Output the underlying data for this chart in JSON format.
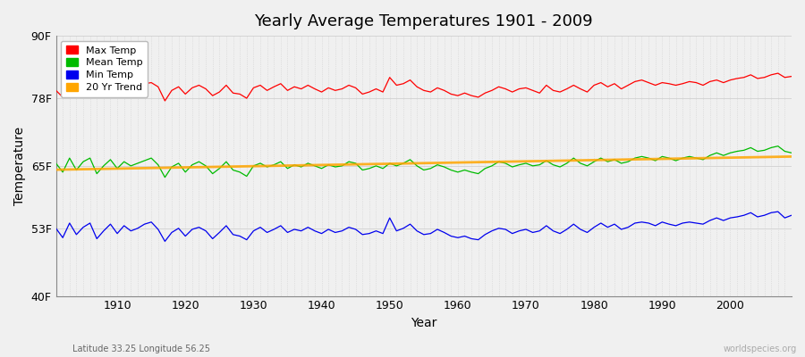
{
  "title": "Yearly Average Temperatures 1901 - 2009",
  "xlabel": "Year",
  "ylabel": "Temperature",
  "background_color": "#f0f0f0",
  "plot_bg_color": "#f0f0f0",
  "ylim": [
    40,
    90
  ],
  "yticks": [
    40,
    53,
    65,
    78,
    90
  ],
  "ytick_labels": [
    "40F",
    "53F",
    "65F",
    "78F",
    "90F"
  ],
  "xlim": [
    1901,
    2009
  ],
  "xticks": [
    1910,
    1920,
    1930,
    1940,
    1950,
    1960,
    1970,
    1980,
    1990,
    2000
  ],
  "legend_entries": [
    "Max Temp",
    "Mean Temp",
    "Min Temp",
    "20 Yr Trend"
  ],
  "legend_colors": [
    "#ff0000",
    "#00bb00",
    "#0000ee",
    "#ffa500"
  ],
  "lat_lon_label": "Latitude 33.25 Longitude 56.25",
  "watermark": "worldspecies.org",
  "max_temp_color": "#ff0000",
  "mean_temp_color": "#00bb00",
  "min_temp_color": "#0000ee",
  "trend_color": "#ffa500",
  "grid_color": "#d0d0d0",
  "years": [
    1901,
    1902,
    1903,
    1904,
    1905,
    1906,
    1907,
    1908,
    1909,
    1910,
    1911,
    1912,
    1913,
    1914,
    1915,
    1916,
    1917,
    1918,
    1919,
    1920,
    1921,
    1922,
    1923,
    1924,
    1925,
    1926,
    1927,
    1928,
    1929,
    1930,
    1931,
    1932,
    1933,
    1934,
    1935,
    1936,
    1937,
    1938,
    1939,
    1940,
    1941,
    1942,
    1943,
    1944,
    1945,
    1946,
    1947,
    1948,
    1949,
    1950,
    1951,
    1952,
    1953,
    1954,
    1955,
    1956,
    1957,
    1958,
    1959,
    1960,
    1961,
    1962,
    1963,
    1964,
    1965,
    1966,
    1967,
    1968,
    1969,
    1970,
    1971,
    1972,
    1973,
    1974,
    1975,
    1976,
    1977,
    1978,
    1979,
    1980,
    1981,
    1982,
    1983,
    1984,
    1985,
    1986,
    1987,
    1988,
    1989,
    1990,
    1991,
    1992,
    1993,
    1994,
    1995,
    1996,
    1997,
    1998,
    1999,
    2000,
    2001,
    2002,
    2003,
    2004,
    2005,
    2006,
    2007,
    2008,
    2009
  ],
  "max_temp": [
    79.5,
    78.2,
    80.5,
    79.0,
    80.2,
    80.8,
    78.5,
    79.8,
    80.5,
    79.2,
    80.0,
    79.5,
    80.2,
    80.8,
    81.0,
    80.2,
    77.5,
    79.5,
    80.2,
    78.8,
    80.0,
    80.5,
    79.8,
    78.5,
    79.2,
    80.5,
    79.0,
    78.8,
    78.0,
    80.0,
    80.5,
    79.5,
    80.2,
    80.8,
    79.5,
    80.2,
    79.8,
    80.5,
    79.8,
    79.2,
    80.0,
    79.5,
    79.8,
    80.5,
    80.0,
    78.8,
    79.2,
    79.8,
    79.2,
    82.0,
    80.5,
    80.8,
    81.5,
    80.2,
    79.5,
    79.2,
    80.0,
    79.5,
    78.8,
    78.5,
    79.0,
    78.5,
    78.2,
    79.0,
    79.5,
    80.2,
    79.8,
    79.2,
    79.8,
    80.0,
    79.5,
    79.0,
    80.5,
    79.5,
    79.2,
    79.8,
    80.5,
    79.8,
    79.2,
    80.5,
    81.0,
    80.2,
    80.8,
    79.8,
    80.5,
    81.2,
    81.5,
    81.0,
    80.5,
    81.0,
    80.8,
    80.5,
    80.8,
    81.2,
    81.0,
    80.5,
    81.2,
    81.5,
    81.0,
    81.5,
    81.8,
    82.0,
    82.5,
    81.8,
    82.0,
    82.5,
    82.8,
    82.0,
    82.2
  ],
  "mean_temp": [
    65.5,
    63.8,
    66.5,
    64.2,
    65.8,
    66.5,
    63.5,
    65.0,
    66.2,
    64.5,
    65.8,
    65.0,
    65.5,
    66.0,
    66.5,
    65.2,
    62.8,
    64.8,
    65.5,
    63.8,
    65.2,
    65.8,
    65.0,
    63.5,
    64.5,
    65.8,
    64.2,
    63.8,
    63.0,
    65.0,
    65.5,
    64.8,
    65.2,
    65.8,
    64.5,
    65.2,
    64.8,
    65.5,
    65.0,
    64.5,
    65.2,
    64.8,
    65.0,
    65.8,
    65.5,
    64.2,
    64.5,
    65.0,
    64.5,
    65.5,
    65.0,
    65.5,
    66.2,
    65.0,
    64.2,
    64.5,
    65.2,
    64.8,
    64.2,
    63.8,
    64.2,
    63.8,
    63.5,
    64.5,
    65.0,
    65.8,
    65.5,
    64.8,
    65.2,
    65.5,
    65.0,
    65.2,
    66.0,
    65.2,
    64.8,
    65.5,
    66.5,
    65.5,
    65.0,
    65.8,
    66.5,
    65.8,
    66.2,
    65.5,
    65.8,
    66.5,
    66.8,
    66.5,
    66.0,
    66.8,
    66.5,
    66.0,
    66.5,
    66.8,
    66.5,
    66.2,
    67.0,
    67.5,
    67.0,
    67.5,
    67.8,
    68.0,
    68.5,
    67.8,
    68.0,
    68.5,
    68.8,
    67.8,
    67.5
  ],
  "min_temp": [
    53.0,
    51.2,
    54.0,
    51.8,
    53.2,
    54.0,
    51.0,
    52.5,
    53.8,
    52.0,
    53.5,
    52.5,
    53.0,
    53.8,
    54.2,
    52.8,
    50.5,
    52.2,
    53.0,
    51.5,
    52.8,
    53.2,
    52.5,
    51.0,
    52.2,
    53.5,
    51.8,
    51.5,
    50.8,
    52.5,
    53.2,
    52.2,
    52.8,
    53.5,
    52.2,
    52.8,
    52.5,
    53.2,
    52.5,
    52.0,
    52.8,
    52.2,
    52.5,
    53.2,
    52.8,
    51.8,
    52.0,
    52.5,
    52.0,
    55.0,
    52.5,
    53.0,
    53.8,
    52.5,
    51.8,
    52.0,
    52.8,
    52.2,
    51.5,
    51.2,
    51.5,
    51.0,
    50.8,
    51.8,
    52.5,
    53.0,
    52.8,
    52.0,
    52.5,
    52.8,
    52.2,
    52.5,
    53.5,
    52.5,
    52.0,
    52.8,
    53.8,
    52.8,
    52.2,
    53.2,
    54.0,
    53.2,
    53.8,
    52.8,
    53.2,
    54.0,
    54.2,
    54.0,
    53.5,
    54.2,
    53.8,
    53.5,
    54.0,
    54.2,
    54.0,
    53.8,
    54.5,
    55.0,
    54.5,
    55.0,
    55.2,
    55.5,
    56.0,
    55.2,
    55.5,
    56.0,
    56.2,
    55.0,
    55.5
  ]
}
